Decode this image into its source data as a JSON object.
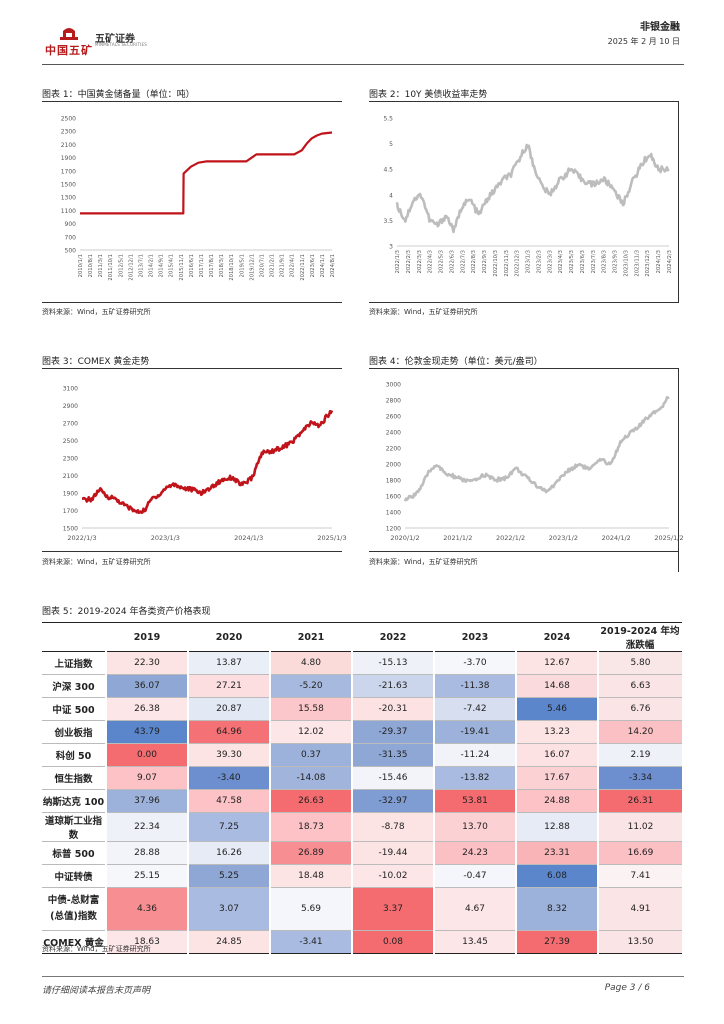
{
  "header": {
    "company_cn": "中国五矿",
    "brand_cn": "五矿证券",
    "brand_en": "MINMETALS SECURITIES",
    "section": "非银金融",
    "date": "2025 年 2 月 10 日"
  },
  "colors": {
    "red_series": "#c0131a",
    "gray_series": "#bdbdbd",
    "text": "#222222"
  },
  "figures": [
    {
      "title": "图表 1：中国黄金储备量（单位：吨）",
      "source": "资料来源：Wind，五矿证券研究所"
    },
    {
      "title": "图表 2：10Y 美债收益率走势",
      "source": "资料来源：Wind，五矿证券研究所"
    },
    {
      "title": "图表 3：COMEX 黄金走势",
      "source": "资料来源：Wind，五矿证券研究所"
    },
    {
      "title": "图表 4：伦敦金现走势（单位：美元/盎司）",
      "source": "资料来源：Wind，五矿证券研究所"
    }
  ],
  "chart_data": [
    {
      "type": "line",
      "title": "图表 1：中国黄金储备量（单位：吨）",
      "color": "#c0131a",
      "ylim": [
        500,
        2500
      ],
      "yticks": [
        "500",
        "700",
        "900",
        "1100",
        "1300",
        "1500",
        "1700",
        "1900",
        "2100",
        "2300",
        "2500"
      ],
      "xticks": [
        "2010/1/1",
        "2010/8/1",
        "2011/3/1",
        "2011/10/1",
        "2012/5/1",
        "2012/12/1",
        "2013/7/1",
        "2014/2/1",
        "2014/9/1",
        "2015/4/1",
        "2015/11/1",
        "2016/6/1",
        "2017/1/1",
        "2017/8/1",
        "2018/3/1",
        "2018/10/1",
        "2019/5/1",
        "2019/12/1",
        "2020/7/1",
        "2021/2/1",
        "2021/9/1",
        "2022/4/1",
        "2022/11/1",
        "2023/6/1",
        "2024/1/1",
        "2024/8/1"
      ],
      "series": [
        {
          "name": "中国黄金储备",
          "x": [
            0,
            0.41,
            0.411,
            0.44,
            0.47,
            0.5,
            0.55,
            0.6,
            0.66,
            0.7,
            0.85,
            0.88,
            0.9,
            0.92,
            0.94,
            0.96,
            1.0
          ],
          "values": [
            1054,
            1054,
            1658,
            1762,
            1823,
            1843,
            1843,
            1843,
            1843,
            1948,
            1948,
            2010,
            2113,
            2192,
            2235,
            2264,
            2280
          ]
        }
      ]
    },
    {
      "type": "line",
      "title": "图表 2：10Y 美债收益率走势",
      "color": "#bdbdbd",
      "ylim": [
        3,
        5.5
      ],
      "yticks": [
        "3",
        "3.5",
        "4",
        "4.5",
        "5",
        "5.5"
      ],
      "xticks": [
        "2022/1/3",
        "2022/2/3",
        "2022/3/3",
        "2022/4/3",
        "2022/5/3",
        "2022/6/3",
        "2022/7/3",
        "2022/8/3",
        "2022/9/3",
        "2022/10/3",
        "2022/11/3",
        "2022/12/3",
        "2023/1/3",
        "2023/2/3",
        "2023/3/3",
        "2023/4/3",
        "2023/5/3",
        "2023/6/3",
        "2023/7/3",
        "2023/8/3",
        "2023/9/3",
        "2023/10/3",
        "2023/11/3",
        "2023/12/3",
        "2024/1/3",
        "2024/2/3"
      ],
      "series": [
        {
          "name": "10Y美债收益率",
          "x": [
            0,
            0.03,
            0.06,
            0.09,
            0.12,
            0.15,
            0.18,
            0.21,
            0.24,
            0.27,
            0.3,
            0.33,
            0.36,
            0.39,
            0.42,
            0.45,
            0.48,
            0.5,
            0.53,
            0.56,
            0.6,
            0.64,
            0.68,
            0.72,
            0.76,
            0.8,
            0.83,
            0.86,
            0.9,
            0.93,
            0.96,
            1.0
          ],
          "values": [
            3.8,
            3.5,
            3.9,
            4.0,
            3.5,
            3.4,
            3.6,
            3.3,
            3.8,
            3.9,
            3.6,
            3.9,
            4.1,
            4.3,
            4.4,
            4.7,
            5.0,
            4.6,
            4.2,
            4.0,
            4.3,
            4.5,
            4.3,
            4.2,
            4.3,
            4.1,
            3.8,
            4.2,
            4.6,
            4.8,
            4.5,
            4.5
          ]
        }
      ]
    },
    {
      "type": "line",
      "title": "图表 3：COMEX 黄金走势",
      "color": "#c0131a",
      "ylim": [
        1500,
        3100
      ],
      "yticks": [
        "1500",
        "1700",
        "1900",
        "2100",
        "2300",
        "2500",
        "2700",
        "2900",
        "3100"
      ],
      "xticks": [
        "2022/1/3",
        "2023/1/3",
        "2024/1/3",
        "2025/1/3"
      ],
      "series": [
        {
          "name": "COMEX黄金",
          "x": [
            0,
            0.04,
            0.07,
            0.1,
            0.13,
            0.16,
            0.19,
            0.22,
            0.25,
            0.28,
            0.31,
            0.34,
            0.37,
            0.4,
            0.44,
            0.48,
            0.52,
            0.56,
            0.6,
            0.64,
            0.68,
            0.72,
            0.76,
            0.8,
            0.84,
            0.88,
            0.92,
            0.95,
            0.98,
            1.0
          ],
          "values": [
            1820,
            1830,
            1940,
            1860,
            1840,
            1780,
            1730,
            1680,
            1700,
            1840,
            1880,
            1970,
            2000,
            1960,
            1940,
            1900,
            1970,
            2050,
            2080,
            1990,
            2070,
            2360,
            2380,
            2420,
            2480,
            2600,
            2710,
            2660,
            2780,
            2840
          ]
        }
      ]
    },
    {
      "type": "line",
      "title": "图表 4：伦敦金现走势（单位：美元/盎司）",
      "color": "#bdbdbd",
      "ylim": [
        1200,
        3000
      ],
      "yticks": [
        "1200",
        "1400",
        "1600",
        "1800",
        "2000",
        "2200",
        "2400",
        "2600",
        "2800",
        "3000"
      ],
      "xticks": [
        "2020/1/2",
        "2021/1/2",
        "2022/1/2",
        "2023/1/2",
        "2024/1/2",
        "2025/1/2"
      ],
      "series": [
        {
          "name": "伦敦金现",
          "x": [
            0,
            0.03,
            0.06,
            0.09,
            0.12,
            0.15,
            0.18,
            0.22,
            0.26,
            0.3,
            0.34,
            0.38,
            0.42,
            0.46,
            0.5,
            0.54,
            0.58,
            0.62,
            0.66,
            0.7,
            0.74,
            0.78,
            0.82,
            0.85,
            0.88,
            0.91,
            0.94,
            0.97,
            1.0
          ],
          "values": [
            1550,
            1600,
            1700,
            1900,
            2000,
            1880,
            1850,
            1800,
            1780,
            1870,
            1800,
            1820,
            1950,
            1830,
            1730,
            1650,
            1800,
            1920,
            2000,
            1930,
            2050,
            2000,
            2300,
            2380,
            2450,
            2550,
            2650,
            2700,
            2860
          ]
        }
      ]
    }
  ],
  "table": {
    "title": "图表 5：2019-2024 年各类资产价格表现",
    "source": "资料来源：Wind，五矿证券研究所",
    "headers": [
      "",
      "2019",
      "2020",
      "2021",
      "2022",
      "2023",
      "2024",
      "2019-2024 年均涨跌幅"
    ],
    "rows": [
      {
        "name": "上证指数",
        "values": [
          "22.30",
          "13.87",
          "4.80",
          "-15.13",
          "-3.70",
          "12.67",
          "5.80"
        ],
        "colors": [
          "#fde4e4",
          "#e9eef7",
          "#fbdada",
          "#eef1f8",
          "#f6f7fb",
          "#fde4e4",
          "#f9e7e8"
        ]
      },
      {
        "name": "沪深 300",
        "values": [
          "36.07",
          "27.21",
          "-5.20",
          "-21.63",
          "-11.38",
          "14.68",
          "6.63"
        ],
        "colors": [
          "#8fa7d4",
          "#fcdde0",
          "#a7b9de",
          "#cbd5ec",
          "#a9bbe0",
          "#fadadc",
          "#fbe4e5"
        ]
      },
      {
        "name": "中证 500",
        "values": [
          "26.38",
          "20.87",
          "15.58",
          "-20.31",
          "-7.42",
          "5.46",
          "6.76"
        ],
        "colors": [
          "#fde6e8",
          "#e2e8f4",
          "#fcc7cb",
          "#fde2e4",
          "#d6def0",
          "#5b86cc",
          "#fbe4e5"
        ]
      },
      {
        "name": "创业板指",
        "values": [
          "43.79",
          "64.96",
          "12.02",
          "-29.37",
          "-19.41",
          "13.23",
          "14.20"
        ],
        "colors": [
          "#5b86cc",
          "#f47276",
          "#fde6e8",
          "#8fa7d4",
          "#9db2da",
          "#fde4e4",
          "#fbc0c4"
        ]
      },
      {
        "name": "科创 50",
        "values": [
          "0.00",
          "39.30",
          "0.37",
          "-31.35",
          "-11.24",
          "16.07",
          "2.19"
        ],
        "colors": [
          "#f46c70",
          "#fde4e4",
          "#9db2da",
          "#8fa7d4",
          "#f1f3f9",
          "#fde2e4",
          "#eef1f8"
        ]
      },
      {
        "name": "恒生指数",
        "values": [
          "9.07",
          "-3.40",
          "-14.08",
          "-15.46",
          "-13.82",
          "17.67",
          "-3.34"
        ],
        "colors": [
          "#fcc2c6",
          "#6d8fd0",
          "#a0b4dc",
          "#f2f4fa",
          "#a9bbe0",
          "#fcd1d4",
          "#6d8fd0"
        ]
      },
      {
        "name": "纳斯达克 100",
        "values": [
          "37.96",
          "47.58",
          "26.63",
          "-32.97",
          "53.81",
          "24.88",
          "26.31"
        ],
        "colors": [
          "#9db2da",
          "#fcc2c6",
          "#f46c70",
          "#7f9dd2",
          "#f46c70",
          "#fcc2c6",
          "#f46c70"
        ]
      },
      {
        "name": "道琼斯工业指数",
        "values": [
          "22.34",
          "7.25",
          "18.73",
          "-8.78",
          "13.70",
          "12.88",
          "11.02"
        ],
        "colors": [
          "#eef1f8",
          "#a9bbe0",
          "#fcc2c6",
          "#fde4e4",
          "#fcd1d4",
          "#e6ebf6",
          "#fbe4e5"
        ]
      },
      {
        "name": "标普 500",
        "values": [
          "28.88",
          "16.26",
          "26.89",
          "-19.44",
          "24.23",
          "23.31",
          "16.69"
        ],
        "colors": [
          "#f2f4fa",
          "#e6ebf6",
          "#f68e92",
          "#fde4e4",
          "#fbc0c4",
          "#f9b4b8",
          "#fbc0c4"
        ]
      },
      {
        "name": "中证转债",
        "values": [
          "25.15",
          "5.25",
          "18.48",
          "-10.02",
          "-0.47",
          "6.08",
          "7.41"
        ],
        "colors": [
          "#f6f7fb",
          "#8fa7d4",
          "#fde4e4",
          "#fde6e8",
          "#f4f6fb",
          "#5b86cc",
          "#fbf2f3"
        ]
      },
      {
        "name": "中债-总财富(总值)指数",
        "values": [
          "4.36",
          "3.07",
          "5.69",
          "3.37",
          "4.67",
          "8.32",
          "4.91"
        ],
        "colors": [
          "#f68e92",
          "#a9bbe0",
          "#f4f6fb",
          "#f46c70",
          "#fde6e8",
          "#9db2da",
          "#fbe4e5"
        ]
      },
      {
        "name": "COMEX 黄金",
        "values": [
          "18.63",
          "24.85",
          "-3.41",
          "0.08",
          "13.45",
          "27.39",
          "13.50"
        ],
        "colors": [
          "#fde6e8",
          "#fde4e4",
          "#a9bbe0",
          "#f46c70",
          "#fde6e8",
          "#f46c70",
          "#fbe4e5"
        ]
      }
    ]
  },
  "footer": {
    "note": "请仔细阅读本报告末页声明",
    "page": "Page    3 / 6"
  }
}
